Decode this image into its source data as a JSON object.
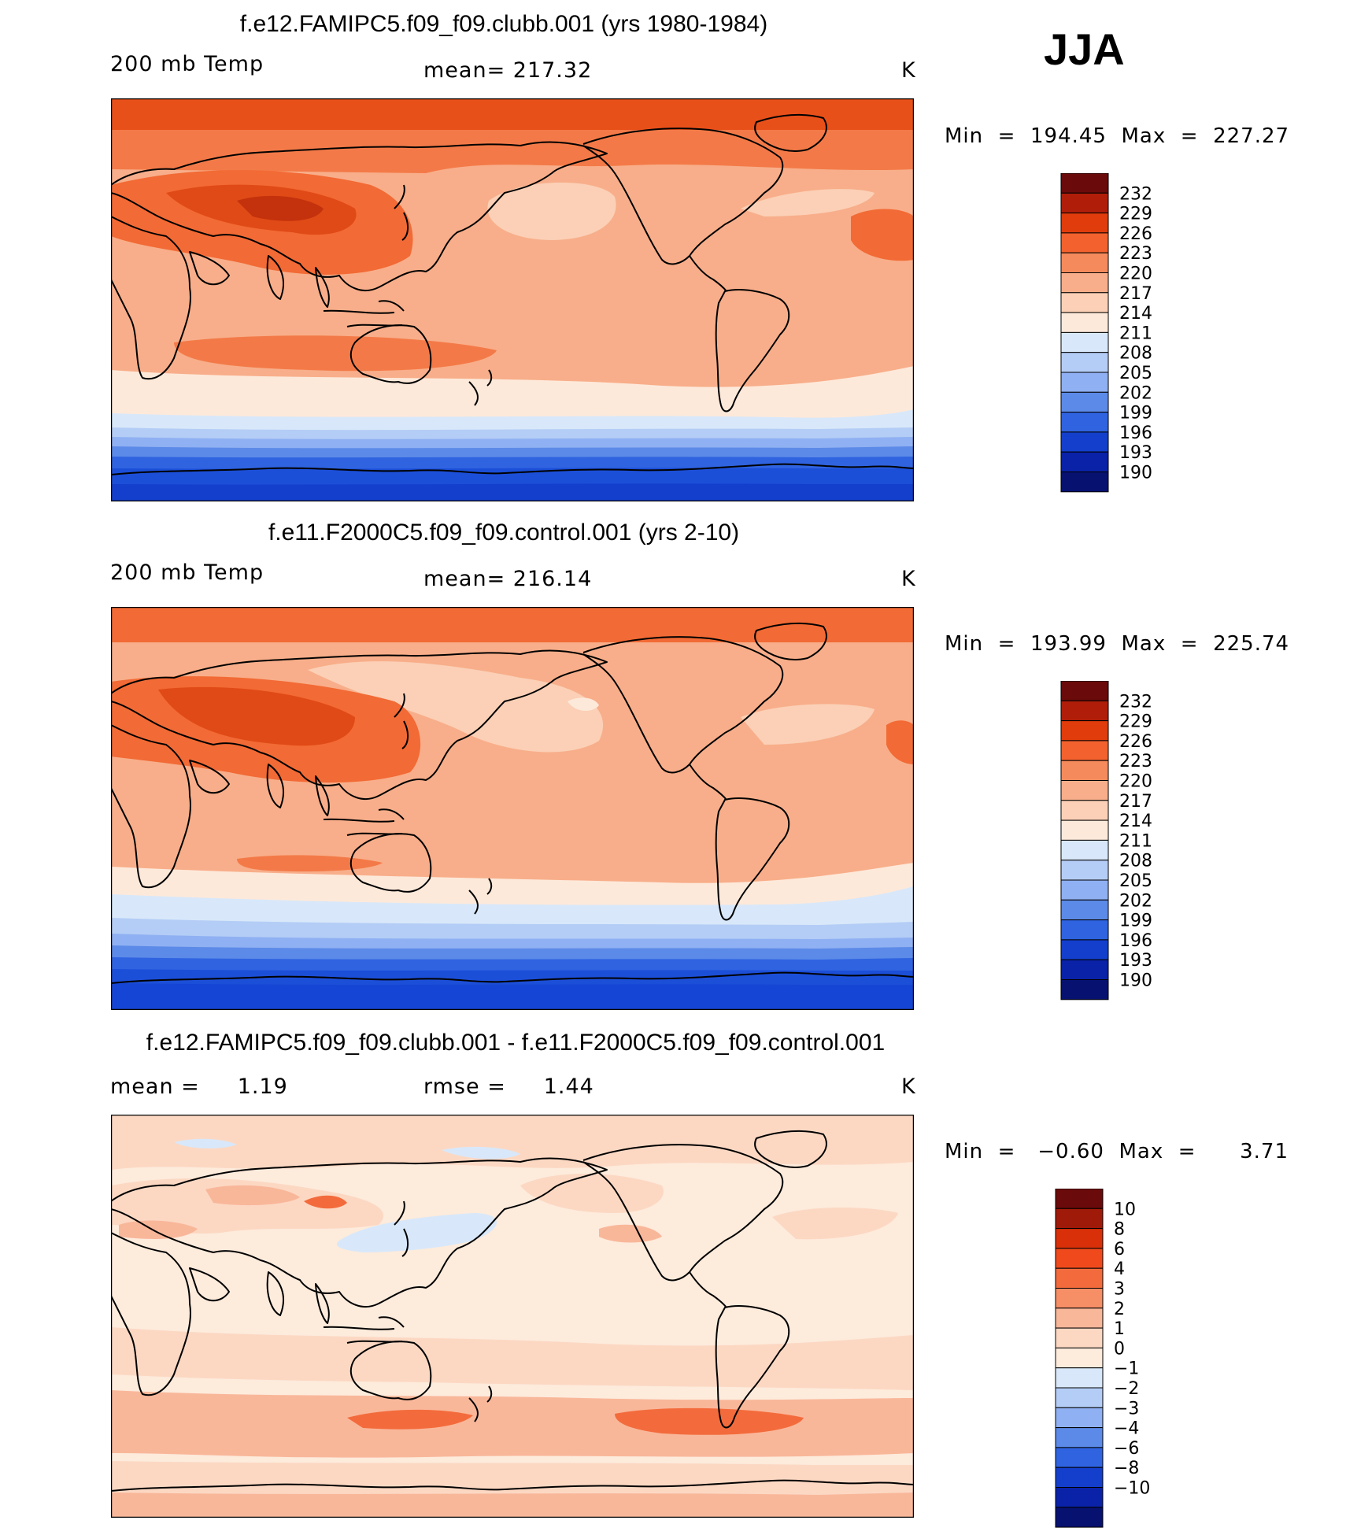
{
  "season": "JJA",
  "units": "K",
  "panels": [
    {
      "title": "f.e12.FAMIPC5.f09_f09.clubb.001 (yrs 1980-1984)",
      "variable": "200 mb Temp",
      "mean_text": "mean= 217.32",
      "units": "K",
      "minmax_text": "Min  =  194.45  Max  =  227.27",
      "colorbar_labels": [
        "232",
        "229",
        "226",
        "223",
        "220",
        "217",
        "214",
        "211",
        "208",
        "205",
        "202",
        "199",
        "196",
        "193",
        "190"
      ]
    },
    {
      "title": "f.e11.F2000C5.f09_f09.control.001 (yrs 2-10)",
      "variable": "200 mb Temp",
      "mean_text": "mean= 216.14",
      "units": "K",
      "minmax_text": "Min  =  193.99  Max  =  225.74",
      "colorbar_labels": [
        "232",
        "229",
        "226",
        "223",
        "220",
        "217",
        "214",
        "211",
        "208",
        "205",
        "202",
        "199",
        "196",
        "193",
        "190"
      ]
    },
    {
      "title": "f.e12.FAMIPC5.f09_f09.clubb.001 - f.e11.F2000C5.f09_f09.control.001",
      "mean_text": "mean =     1.19",
      "rmse_text": "rmse =     1.44",
      "units": "K",
      "minmax_text": "Min  =   −0.60  Max  =      3.71",
      "colorbar_labels": [
        "10",
        "8",
        "6",
        "4",
        "3",
        "2",
        "1",
        "0",
        "−1",
        "−2",
        "−3",
        "−4",
        "−6",
        "−8",
        "−10"
      ]
    }
  ],
  "colors": {
    "abs_scale": [
      "#6b0a0a",
      "#b01e0a",
      "#e03c0c",
      "#f2612e",
      "#f58a5c",
      "#f8ae8a",
      "#fbd0b6",
      "#fde9da",
      "#d8e8fa",
      "#b4cdf6",
      "#8fb0f2",
      "#5c8ae8",
      "#2f63e0",
      "#143fcc",
      "#0a22a8",
      "#061170"
    ],
    "diff_scale": [
      "#6b0a0a",
      "#a01a0a",
      "#d9300a",
      "#f04a1c",
      "#f36b3c",
      "#f68e66",
      "#f9b79a",
      "#fcd8c3",
      "#fdebdc",
      "#d8e8fa",
      "#b4cdf6",
      "#8fb0f2",
      "#5c8ae8",
      "#2f63e0",
      "#143fcc",
      "#0a22a8",
      "#061170"
    ]
  }
}
